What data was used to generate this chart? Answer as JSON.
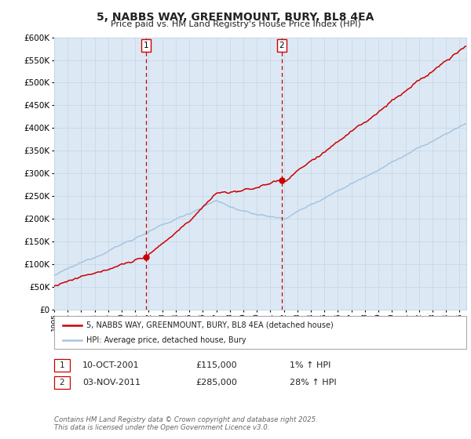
{
  "title": "5, NABBS WAY, GREENMOUNT, BURY, BL8 4EA",
  "subtitle": "Price paid vs. HM Land Registry's House Price Index (HPI)",
  "legend_line1": "5, NABBS WAY, GREENMOUNT, BURY, BL8 4EA (detached house)",
  "legend_line2": "HPI: Average price, detached house, Bury",
  "purchase1_date": "10-OCT-2001",
  "purchase1_price": 115000,
  "purchase1_hpi": "1%",
  "purchase2_date": "03-NOV-2011",
  "purchase2_price": 285000,
  "purchase2_hpi": "28%",
  "purchase1_label": "1",
  "purchase2_label": "2",
  "copyright": "Contains HM Land Registry data © Crown copyright and database right 2025.\nThis data is licensed under the Open Government Licence v3.0.",
  "ylim": [
    0,
    600000
  ],
  "yticks": [
    0,
    50000,
    100000,
    150000,
    200000,
    250000,
    300000,
    350000,
    400000,
    450000,
    500000,
    550000,
    600000
  ],
  "background_color": "#ffffff",
  "plot_bg_color": "#dce9f5",
  "grid_color": "#c8d8e8",
  "hpi_line_color": "#a8c4e0",
  "price_line_color": "#cc0000",
  "vline_color": "#cc0000",
  "marker_color": "#cc0000",
  "purchase1_x": 2001.78,
  "purchase2_x": 2011.84,
  "xmin": 1995,
  "xmax": 2025.5
}
